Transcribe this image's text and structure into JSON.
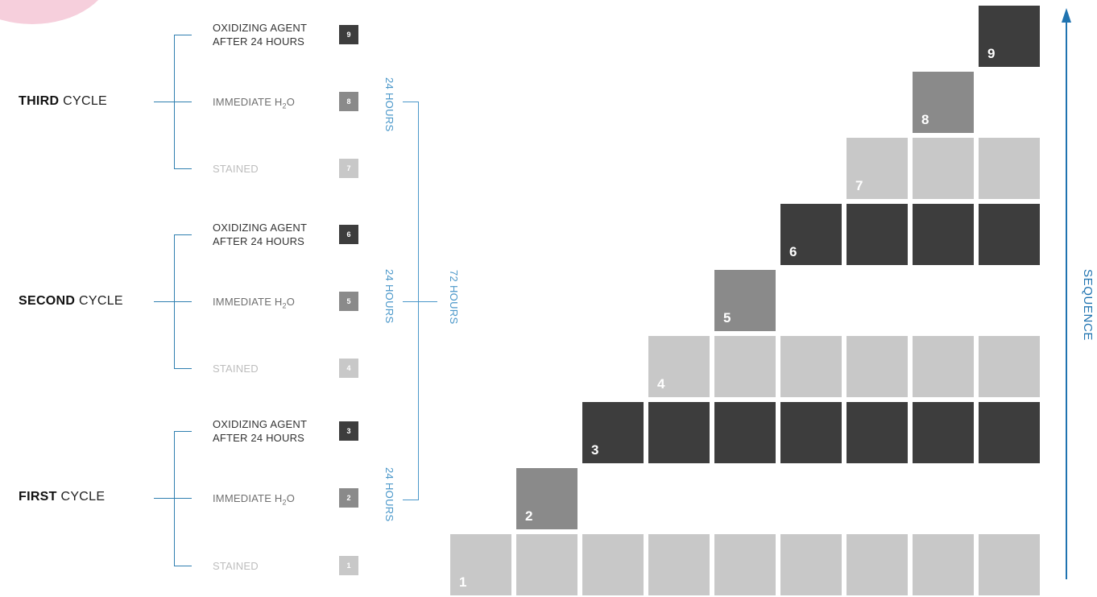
{
  "colors": {
    "dark": "#3d3d3d",
    "mid": "#8a8a8a",
    "light": "#c8c8c8",
    "blue": "#1f73b0"
  },
  "cycles": [
    {
      "bold": "THIRD",
      "rest": " CYCLE"
    },
    {
      "bold": "SECOND",
      "rest": " CYCLE"
    },
    {
      "bold": "FIRST",
      "rest": " CYCLE"
    }
  ],
  "steps": [
    {
      "n": "9",
      "text": "OXIDIZING AGENT\nAFTER 24 HOURS",
      "shade": "dark"
    },
    {
      "n": "8",
      "text": "IMMEDIATE H",
      "sub": "2",
      "tail": "O",
      "shade": "mid"
    },
    {
      "n": "7",
      "text": "STAINED",
      "shade": "light"
    },
    {
      "n": "6",
      "text": "OXIDIZING AGENT\nAFTER 24 HOURS",
      "shade": "dark"
    },
    {
      "n": "5",
      "text": "IMMEDIATE H",
      "sub": "2",
      "tail": "O",
      "shade": "mid"
    },
    {
      "n": "4",
      "text": "STAINED",
      "shade": "light"
    },
    {
      "n": "3",
      "text": "OXIDIZING AGENT\nAFTER 24 HOURS",
      "shade": "dark"
    },
    {
      "n": "2",
      "text": "IMMEDIATE H",
      "sub": "2",
      "tail": "O",
      "shade": "mid"
    },
    {
      "n": "1",
      "text": "STAINED",
      "shade": "light"
    }
  ],
  "hours": {
    "cycle": "24 HOURS",
    "total": "72 HOURS"
  },
  "sequence_label": "SEQUENCE",
  "rows": [
    {
      "n": "1",
      "shade": "light",
      "start": 0
    },
    {
      "n": "2",
      "shade": "mid",
      "start": 1,
      "single": true
    },
    {
      "n": "3",
      "shade": "dark",
      "start": 2
    },
    {
      "n": "4",
      "shade": "light",
      "start": 3
    },
    {
      "n": "5",
      "shade": "mid",
      "start": 4,
      "single": true
    },
    {
      "n": "6",
      "shade": "dark",
      "start": 5
    },
    {
      "n": "7",
      "shade": "light",
      "start": 6
    },
    {
      "n": "8",
      "shade": "mid",
      "start": 7,
      "single": true
    },
    {
      "n": "9",
      "shade": "dark",
      "start": 8
    }
  ]
}
